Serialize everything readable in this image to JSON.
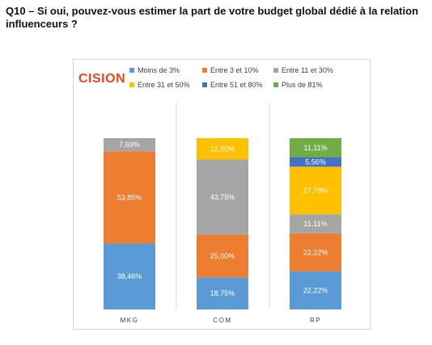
{
  "question": "Q10 – Si oui, pouvez-vous estimer la part de votre budget global dédié à la relation influenceurs ?",
  "logo_text": "CISION",
  "colors": {
    "logo": "#e8451e"
  },
  "chart_data": {
    "type": "bar",
    "stacked": true,
    "title": "",
    "xlabel": "",
    "ylabel": "",
    "ylim": [
      0,
      100
    ],
    "grid": false,
    "legend_position": "top",
    "categories": [
      "MKG",
      "COM",
      "RP"
    ],
    "series": [
      {
        "name": "Moins de 3%",
        "color": "#5b9bd5",
        "values": [
          38.46,
          18.75,
          22.22
        ],
        "labels": [
          "38,46%",
          "18,75%",
          "22,22%"
        ]
      },
      {
        "name": "Entre 3 et 10%",
        "color": "#ed7d31",
        "values": [
          53.85,
          25.0,
          22.22
        ],
        "labels": [
          "53,85%",
          "25,00%",
          "22,22%"
        ]
      },
      {
        "name": "Entre 11 et 30%",
        "color": "#a5a5a5",
        "values": [
          7.69,
          43.75,
          11.11
        ],
        "labels": [
          "7,69%",
          "43,75%",
          "11,11%"
        ]
      },
      {
        "name": "Entre 31 et 50%",
        "color": "#ffc000",
        "values": [
          0,
          12.5,
          27.78
        ],
        "labels": [
          "",
          "12,50%",
          "27,78%"
        ]
      },
      {
        "name": "Entre 51 et 80%",
        "color": "#4472c4",
        "values": [
          0,
          0,
          5.56
        ],
        "labels": [
          "",
          "",
          "5,56%"
        ]
      },
      {
        "name": "Plus de 81%",
        "color": "#70ad47",
        "values": [
          0,
          0,
          11.11
        ],
        "labels": [
          "",
          "",
          "11,11%"
        ]
      }
    ]
  }
}
